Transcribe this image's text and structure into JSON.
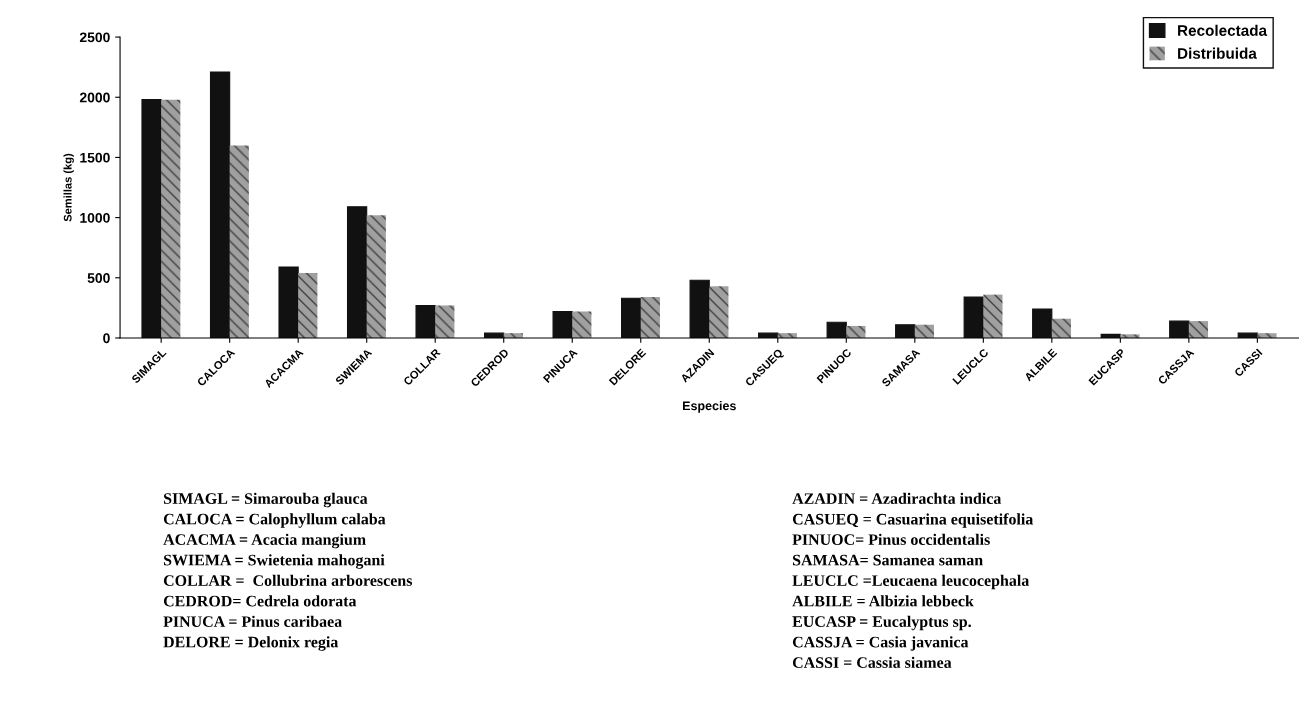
{
  "chart_data": {
    "type": "bar",
    "xlabel": "Especies",
    "ylabel": "Semillas (kg)",
    "categories": [
      "SIMAGL",
      "CALOCA",
      "ACACMA",
      "SWIEMA",
      "COLLAR",
      "CEDROD",
      "PINUCA",
      "DELORE",
      "AZADIN",
      "CASUEQ",
      "PINUOC",
      "SAMASA",
      "LEUCLC",
      "ALBILE",
      "EUCASP",
      "CASSJA",
      "CASSI"
    ],
    "series": [
      {
        "name": "Recolectada",
        "color": "#111111",
        "values": [
          1980,
          2210,
          590,
          1090,
          270,
          40,
          220,
          330,
          480,
          40,
          130,
          110,
          340,
          240,
          30,
          140,
          40
        ]
      },
      {
        "name": "Distribuida",
        "color": "#a0a0a0",
        "values": [
          1980,
          1600,
          540,
          1020,
          270,
          40,
          220,
          340,
          430,
          40,
          100,
          110,
          360,
          160,
          30,
          140,
          40
        ]
      }
    ],
    "ylim": [
      0,
      2500
    ],
    "yticks": [
      0,
      500,
      1000,
      1500,
      2000,
      2500
    ],
    "grid": false,
    "legend": "top right",
    "annotations": [
      "SIMAGL = Simarouba glauca",
      "CALOCA = Calophyllum calaba",
      "ACACMA = Acacia mangium",
      "SWIEMA = Swietenia mahogani",
      "COLLAR =  Collubrina arborescens",
      "CEDROD= Cedrela odorata",
      "PINUCA = Pinus caribaea",
      "DELORE = Delonix regia",
      "AZADIN = Azadirachta indica",
      "CASUEQ = Casuarina equisetifolia",
      "PINUOC= Pinus occidentalis",
      "SAMASA= Samanea saman",
      "LEUCLC =Leucaena leucocephala",
      "ALBILE = Albizia lebbeck",
      "EUCASP = Eucalyptus sp.",
      "CASSJA = Casia javanica",
      "CASSI = Cassia siamea"
    ]
  }
}
